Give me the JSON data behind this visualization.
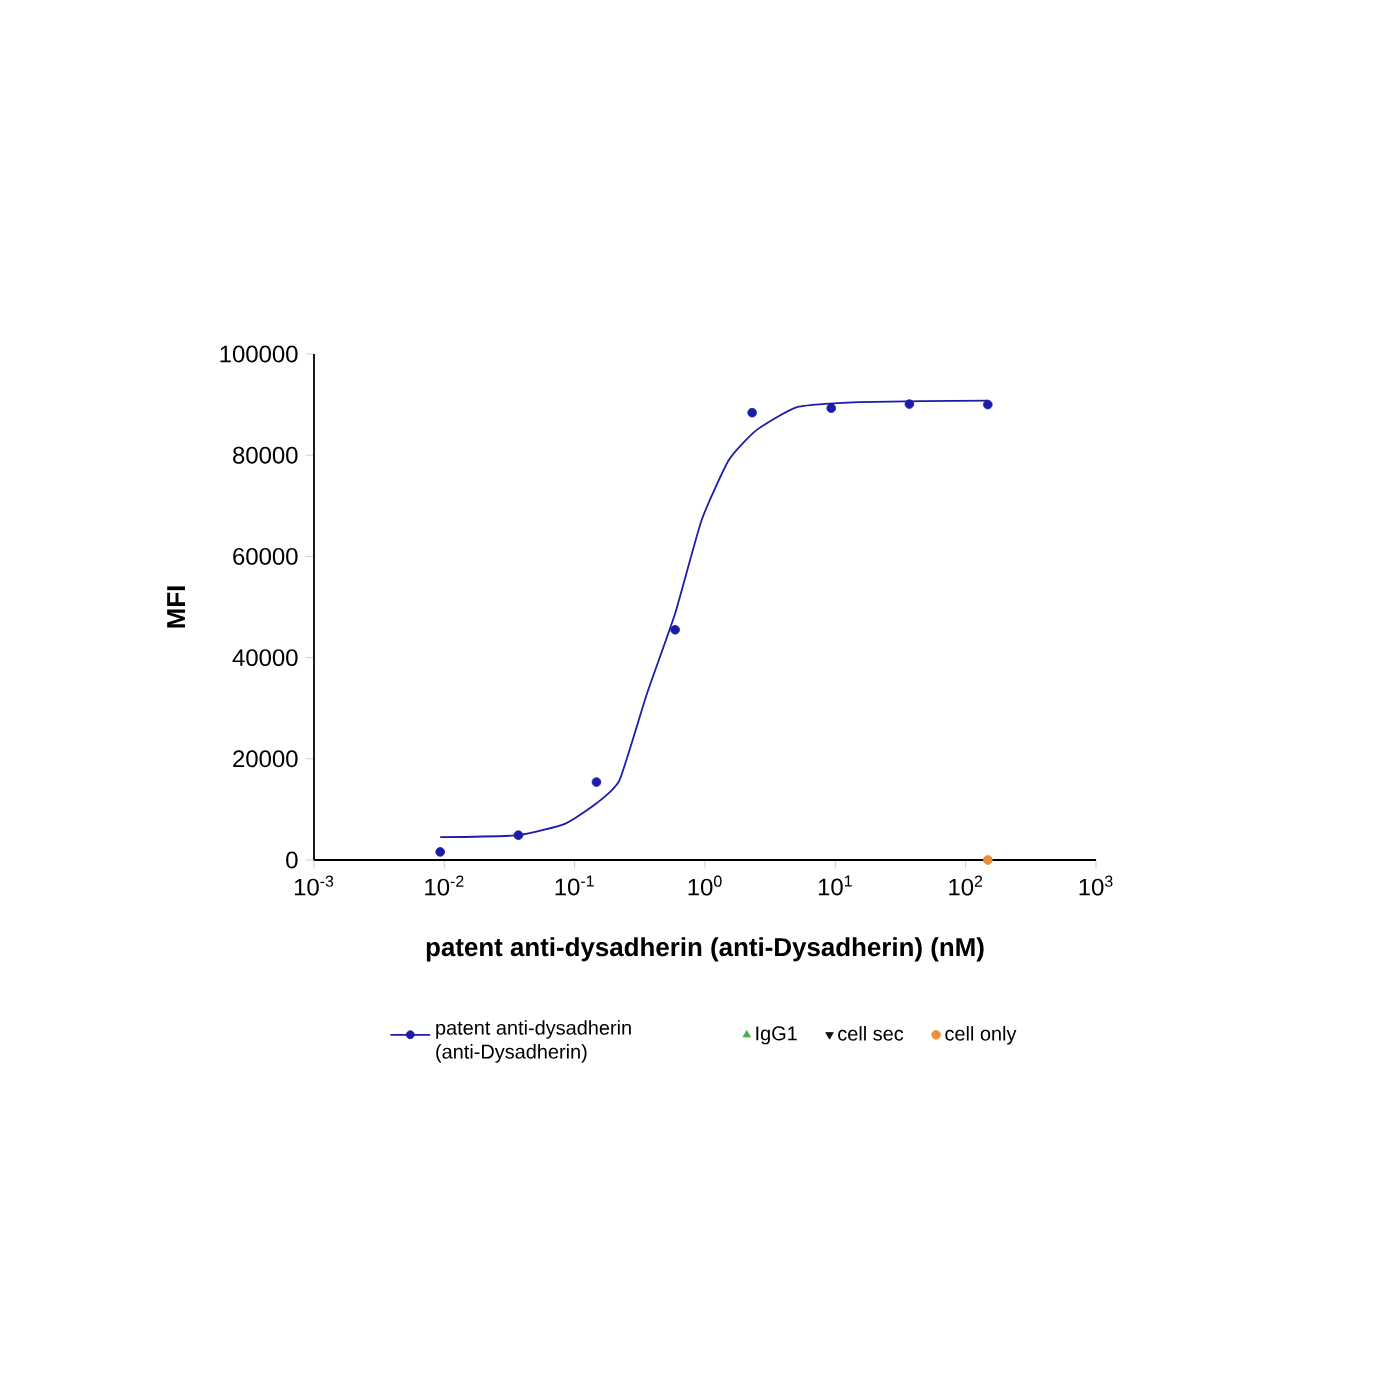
{
  "chart_data": {
    "type": "scatter",
    "xlabel": "patent anti-dysadherin (anti-Dysadherin) (nM)",
    "ylabel": "MFI",
    "log": "x",
    "xlim": [
      0.001,
      1000
    ],
    "ylim": [
      0,
      100000
    ],
    "xticks": [
      {
        "value": 0.001,
        "label": "10$^{-3}$"
      },
      {
        "value": 0.01,
        "label": "10$^{-2}$"
      },
      {
        "value": 0.1,
        "label": "10$^{-1}$"
      },
      {
        "value": 1,
        "label": "10$^{0}$"
      },
      {
        "value": 10,
        "label": "10$^{1}$"
      },
      {
        "value": 100,
        "label": "10$^{2}$"
      },
      {
        "value": 1000,
        "label": "10$^{3}$"
      }
    ],
    "yticks": [
      0,
      20000,
      40000,
      60000,
      80000,
      100000
    ],
    "legend": "bottom",
    "grid": false,
    "series": [
      {
        "name": "patent anti-dysadherin (anti-Dysadherin)",
        "marker": "circle",
        "color": "#1c1ca8",
        "x": [
          0.0093,
          0.037,
          0.147,
          0.59,
          2.3,
          9.3,
          37,
          148
        ],
        "values": [
          1600,
          4900,
          15400,
          45500,
          88400,
          89300,
          90100,
          90000
        ]
      },
      {
        "type": "line",
        "color": "#1c1ca8",
        "x": [
          0.0093,
          0.037,
          0.085,
          0.147,
          0.221,
          0.359,
          0.59,
          0.94,
          1.52,
          2.47,
          5.09,
          15.1,
          148
        ],
        "values": [
          4500,
          4900,
          7200,
          11200,
          15800,
          32900,
          48700,
          67100,
          79000,
          84900,
          89500,
          90500,
          90800
        ]
      },
      {
        "name": "IgG1",
        "marker": "triangle",
        "color": "#4caf50",
        "x": [
          148
        ],
        "values": [
          0
        ]
      },
      {
        "name": "cell sec",
        "marker": "triangle-down",
        "color": "#111111",
        "x": [
          148
        ],
        "values": [
          0
        ]
      },
      {
        "name": "cell only",
        "marker": "circle",
        "color": "#e8913a",
        "x": [
          148
        ],
        "values": [
          0
        ]
      }
    ]
  }
}
